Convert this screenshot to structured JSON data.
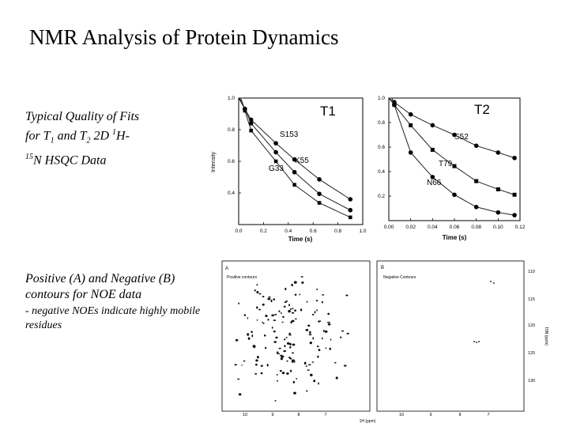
{
  "slide": {
    "title": "NMR Analysis of Protein Dynamics",
    "caption1": {
      "line1": "Typical Quality of Fits",
      "line2_pre": "for T",
      "t1_sub": "1",
      "line2_mid": " and T",
      "t2_sub": "2",
      "line2_post": " 2D ",
      "h_sup": "1",
      "h": "H-",
      "n_sup": "15",
      "line3": "N HSQC Data"
    },
    "caption2": {
      "main": "Positive (A) and Negative (B) contours for NOE data",
      "sub": "- negative NOEs indicate highly mobile residues"
    }
  },
  "chart_data": [
    {
      "type": "scatter",
      "title": "T1",
      "ylabel": "Intensity",
      "xlabel": "Time (s)",
      "xlim": [
        0,
        1.0
      ],
      "ylim": [
        0.3,
        1.0
      ],
      "x_ticks": [
        "0.0",
        "0.2",
        "0.4",
        "0.6",
        "0.8",
        "1.0"
      ],
      "y_ticks": [
        "1.0",
        "0.8",
        "0.6",
        "0.4"
      ],
      "series": [
        {
          "name": "S153",
          "x": [
            0.05,
            0.1,
            0.3,
            0.45,
            0.65,
            0.9
          ],
          "y": [
            0.94,
            0.88,
            0.75,
            0.66,
            0.55,
            0.44
          ]
        },
        {
          "name": "K55",
          "x": [
            0.05,
            0.1,
            0.3,
            0.45,
            0.65,
            0.9
          ],
          "y": [
            0.94,
            0.86,
            0.7,
            0.59,
            0.47,
            0.38
          ]
        },
        {
          "name": "G33",
          "x": [
            0.05,
            0.1,
            0.3,
            0.45,
            0.65,
            0.9
          ],
          "y": [
            0.93,
            0.82,
            0.65,
            0.52,
            0.42,
            0.34
          ]
        }
      ]
    },
    {
      "type": "scatter",
      "title": "T2",
      "xlabel": "Time (s)",
      "xlim": [
        0,
        0.12
      ],
      "ylim": [
        0.1,
        1.0
      ],
      "x_ticks": [
        "0.00",
        "0.02",
        "0.04",
        "0.06",
        "0.08",
        "0.10",
        "0.12"
      ],
      "y_ticks": [
        "1.0",
        "0.8",
        "0.6",
        "0.4",
        "0.2"
      ],
      "series": [
        {
          "name": "S52",
          "x": [
            0.005,
            0.02,
            0.04,
            0.06,
            0.08,
            0.1,
            0.115
          ],
          "y": [
            0.97,
            0.88,
            0.8,
            0.73,
            0.65,
            0.6,
            0.56
          ]
        },
        {
          "name": "T79",
          "x": [
            0.005,
            0.02,
            0.04,
            0.06,
            0.08,
            0.1,
            0.115
          ],
          "y": [
            0.95,
            0.8,
            0.62,
            0.5,
            0.39,
            0.33,
            0.29
          ]
        },
        {
          "name": "N66",
          "x": [
            0.005,
            0.02,
            0.04,
            0.06,
            0.08,
            0.1,
            0.115
          ],
          "y": [
            0.95,
            0.6,
            0.42,
            0.29,
            0.2,
            0.16,
            0.14
          ]
        }
      ]
    }
  ],
  "noe": {
    "panel_a_letter": "A",
    "panel_a_label": "Positive contours",
    "panel_b_letter": "B",
    "panel_b_label": "Negative Contours",
    "x_ticks": [
      "10",
      "9",
      "8",
      "7",
      "10",
      "9",
      "8",
      "7"
    ],
    "y_ticks": [
      "110",
      "115",
      "120",
      "125",
      "130"
    ],
    "x_axis_label": "1H (ppm)",
    "y_axis_label": "15N (ppm)"
  }
}
